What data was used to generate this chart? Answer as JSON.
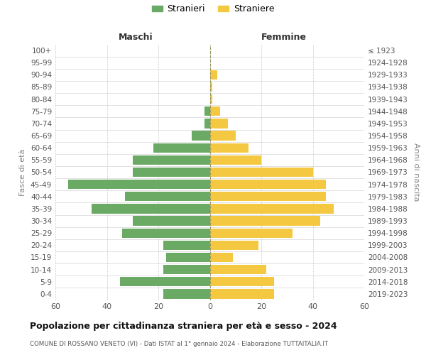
{
  "age_groups": [
    "0-4",
    "5-9",
    "10-14",
    "15-19",
    "20-24",
    "25-29",
    "30-34",
    "35-39",
    "40-44",
    "45-49",
    "50-54",
    "55-59",
    "60-64",
    "65-69",
    "70-74",
    "75-79",
    "80-84",
    "85-89",
    "90-94",
    "95-99",
    "100+"
  ],
  "birth_years": [
    "2019-2023",
    "2014-2018",
    "2009-2013",
    "2004-2008",
    "1999-2003",
    "1994-1998",
    "1989-1993",
    "1984-1988",
    "1979-1983",
    "1974-1978",
    "1969-1973",
    "1964-1968",
    "1959-1963",
    "1954-1958",
    "1949-1953",
    "1944-1948",
    "1939-1943",
    "1934-1938",
    "1929-1933",
    "1924-1928",
    "≤ 1923"
  ],
  "males": [
    18,
    35,
    18,
    17,
    18,
    34,
    30,
    46,
    33,
    55,
    30,
    30,
    22,
    7,
    2,
    2,
    0,
    0,
    0,
    0,
    0
  ],
  "females": [
    25,
    25,
    22,
    9,
    19,
    32,
    43,
    48,
    45,
    45,
    40,
    20,
    15,
    10,
    7,
    4,
    1,
    1,
    3,
    0,
    0
  ],
  "male_color": "#6aaa64",
  "female_color": "#f5c842",
  "male_label": "Stranieri",
  "female_label": "Straniere",
  "title": "Popolazione per cittadinanza straniera per età e sesso - 2024",
  "subtitle": "COMUNE DI ROSSANO VENETO (VI) - Dati ISTAT al 1° gennaio 2024 - Elaborazione TUTTAITALIA.IT",
  "xlabel_left": "Maschi",
  "xlabel_right": "Femmine",
  "ylabel_left": "Fasce di età",
  "ylabel_right": "Anni di nascita",
  "xlim": 60,
  "background_color": "#ffffff",
  "grid_color": "#cccccc",
  "dashed_line_color": "#999966"
}
